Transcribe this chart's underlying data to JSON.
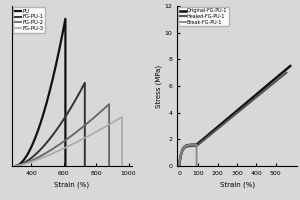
{
  "left_plot": {
    "xlabel": "Strain (%)",
    "xlim": [
      280,
      1020
    ],
    "ylim": [
      0,
      15
    ],
    "xticks": [
      400,
      600,
      800,
      1000
    ],
    "bg_color": "#d8d8d8",
    "series": [
      {
        "label": "PU",
        "color": "#111111",
        "linewidth": 1.6,
        "x_start": 300,
        "strain_end": 610,
        "peak_stress": 13.8,
        "shape_exp": 1.8
      },
      {
        "label": "FG-PU-1",
        "color": "#333333",
        "linewidth": 1.4,
        "x_start": 300,
        "strain_end": 730,
        "peak_stress": 7.8,
        "shape_exp": 1.6
      },
      {
        "label": "FG-PU-2",
        "color": "#666666",
        "linewidth": 1.3,
        "x_start": 300,
        "strain_end": 880,
        "peak_stress": 5.8,
        "shape_exp": 1.4
      },
      {
        "label": "FG-PU-3",
        "color": "#aaaaaa",
        "linewidth": 1.2,
        "x_start": 300,
        "strain_end": 960,
        "peak_stress": 4.6,
        "shape_exp": 1.3
      }
    ]
  },
  "right_plot": {
    "xlabel": "Strain (%)",
    "ylabel": "Stress (MPa)",
    "xlim": [
      -10,
      610
    ],
    "ylim": [
      0,
      12
    ],
    "xticks": [
      0,
      100,
      200,
      300,
      400,
      500
    ],
    "yticks": [
      0,
      2,
      4,
      6,
      8,
      10,
      12
    ],
    "bg_color": "#d8d8d8",
    "series": [
      {
        "label": "Original-FG-PU-1",
        "color": "#111111",
        "linewidth": 1.8,
        "strain_end": 575,
        "peak_stress": 7.5,
        "toe_strain": 90,
        "toe_stress": 1.6,
        "is_break": false
      },
      {
        "label": "Healed-FG-PU-1",
        "color": "#555555",
        "linewidth": 1.5,
        "strain_end": 555,
        "peak_stress": 7.0,
        "toe_strain": 90,
        "toe_stress": 1.5,
        "is_break": false
      },
      {
        "label": "Break-FG-PU-1",
        "color": "#888888",
        "linewidth": 1.3,
        "strain_end": 95,
        "peak_stress": 1.6,
        "toe_strain": 90,
        "toe_stress": 1.6,
        "is_break": true
      }
    ]
  }
}
